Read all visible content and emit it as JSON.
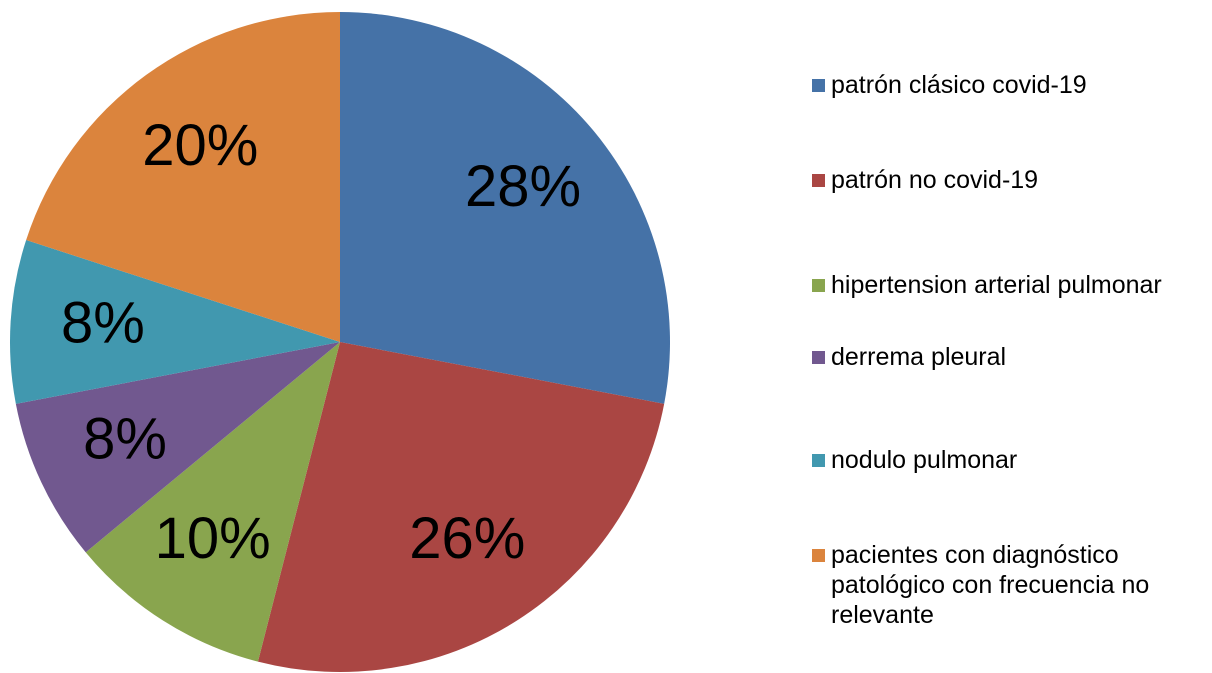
{
  "chart_data": {
    "type": "pie",
    "categories": [
      "patrón clásico covid-19",
      "patrón no covid-19",
      "hipertension arterial pulmonar",
      "derrema pleural",
      "nodulo pulmonar",
      "pacientes con diagnóstico patológico con frecuencia no relevante"
    ],
    "values": [
      28,
      26,
      10,
      8,
      8,
      20
    ],
    "value_labels": [
      "28%",
      "26%",
      "10%",
      "8%",
      "8%",
      "20%"
    ],
    "colors": [
      "#4572a7",
      "#aa4643",
      "#89a54e",
      "#71588f",
      "#4198af",
      "#db843d"
    ],
    "legend": "right"
  }
}
